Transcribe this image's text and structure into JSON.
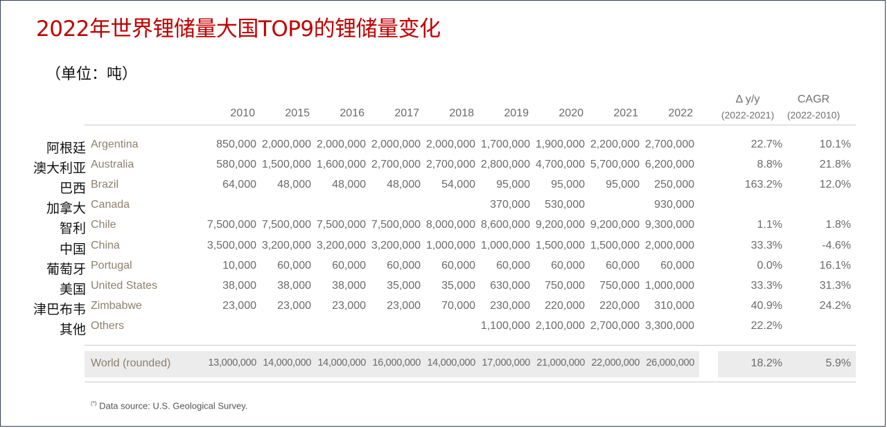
{
  "title": "2022年世界锂储量大国TOP9的锂储量变化",
  "unit_label": "（单位：吨）",
  "chart_data": {
    "type": "table",
    "columns": [
      "2010",
      "2015",
      "2016",
      "2017",
      "2018",
      "2019",
      "2020",
      "2021",
      "2022"
    ],
    "extra_columns": [
      {
        "label": "Δ y/y",
        "sub": "(2022-2021)"
      },
      {
        "label": "CAGR",
        "sub": "(2022-2010)"
      }
    ],
    "rows": [
      {
        "cn": "阿根廷",
        "en": "Argentina",
        "values": [
          "850,000",
          "2,000,000",
          "2,000,000",
          "2,000,000",
          "2,000,000",
          "1,700,000",
          "1,900,000",
          "2,200,000",
          "2,700,000"
        ],
        "yoy": "22.7%",
        "cagr": "10.1%"
      },
      {
        "cn": "澳大利亚",
        "en": "Australia",
        "values": [
          "580,000",
          "1,500,000",
          "1,600,000",
          "2,700,000",
          "2,700,000",
          "2,800,000",
          "4,700,000",
          "5,700,000",
          "6,200,000"
        ],
        "yoy": "8.8%",
        "cagr": "21.8%"
      },
      {
        "cn": "巴西",
        "en": "Brazil",
        "values": [
          "64,000",
          "48,000",
          "48,000",
          "48,000",
          "54,000",
          "95,000",
          "95,000",
          "95,000",
          "250,000"
        ],
        "yoy": "163.2%",
        "cagr": "12.0%"
      },
      {
        "cn": "加拿大",
        "en": "Canada",
        "values": [
          "",
          "",
          "",
          "",
          "",
          "370,000",
          "530,000",
          "",
          "930,000"
        ],
        "yoy": "",
        "cagr": ""
      },
      {
        "cn": "智利",
        "en": "Chile",
        "values": [
          "7,500,000",
          "7,500,000",
          "7,500,000",
          "7,500,000",
          "8,000,000",
          "8,600,000",
          "9,200,000",
          "9,200,000",
          "9,300,000"
        ],
        "yoy": "1.1%",
        "cagr": "1.8%"
      },
      {
        "cn": "中国",
        "en": "China",
        "values": [
          "3,500,000",
          "3,200,000",
          "3,200,000",
          "3,200,000",
          "1,000,000",
          "1,000,000",
          "1,500,000",
          "1,500,000",
          "2,000,000"
        ],
        "yoy": "33.3%",
        "cagr": "-4.6%"
      },
      {
        "cn": "葡萄牙",
        "en": "Portugal",
        "values": [
          "10,000",
          "60,000",
          "60,000",
          "60,000",
          "60,000",
          "60,000",
          "60,000",
          "60,000",
          "60,000"
        ],
        "yoy": "0.0%",
        "cagr": "16.1%"
      },
      {
        "cn": "美国",
        "en": "United States",
        "values": [
          "38,000",
          "38,000",
          "38,000",
          "35,000",
          "35,000",
          "630,000",
          "750,000",
          "750,000",
          "1,000,000"
        ],
        "yoy": "33.3%",
        "cagr": "31.3%"
      },
      {
        "cn": "津巴布韦",
        "en": "Zimbabwe",
        "values": [
          "23,000",
          "23,000",
          "23,000",
          "23,000",
          "70,000",
          "230,000",
          "220,000",
          "220,000",
          "310,000"
        ],
        "yoy": "40.9%",
        "cagr": "24.2%"
      },
      {
        "cn": "其他",
        "en": "Others",
        "values": [
          "",
          "",
          "",
          "",
          "",
          "1,100,000",
          "2,100,000",
          "2,700,000",
          "3,300,000"
        ],
        "yoy": "22.2%",
        "cagr": ""
      }
    ],
    "total": {
      "en": "World (rounded)",
      "values": [
        "13,000,000",
        "14,000,000",
        "14,000,000",
        "16,000,000",
        "14,000,000",
        "17,000,000",
        "21,000,000",
        "22,000,000",
        "26,000,000"
      ],
      "yoy": "18.2%",
      "cagr": "5.9%"
    }
  },
  "footnote": {
    "marker": "(*)",
    "text": "Data source: U.S. Geological Survey."
  }
}
